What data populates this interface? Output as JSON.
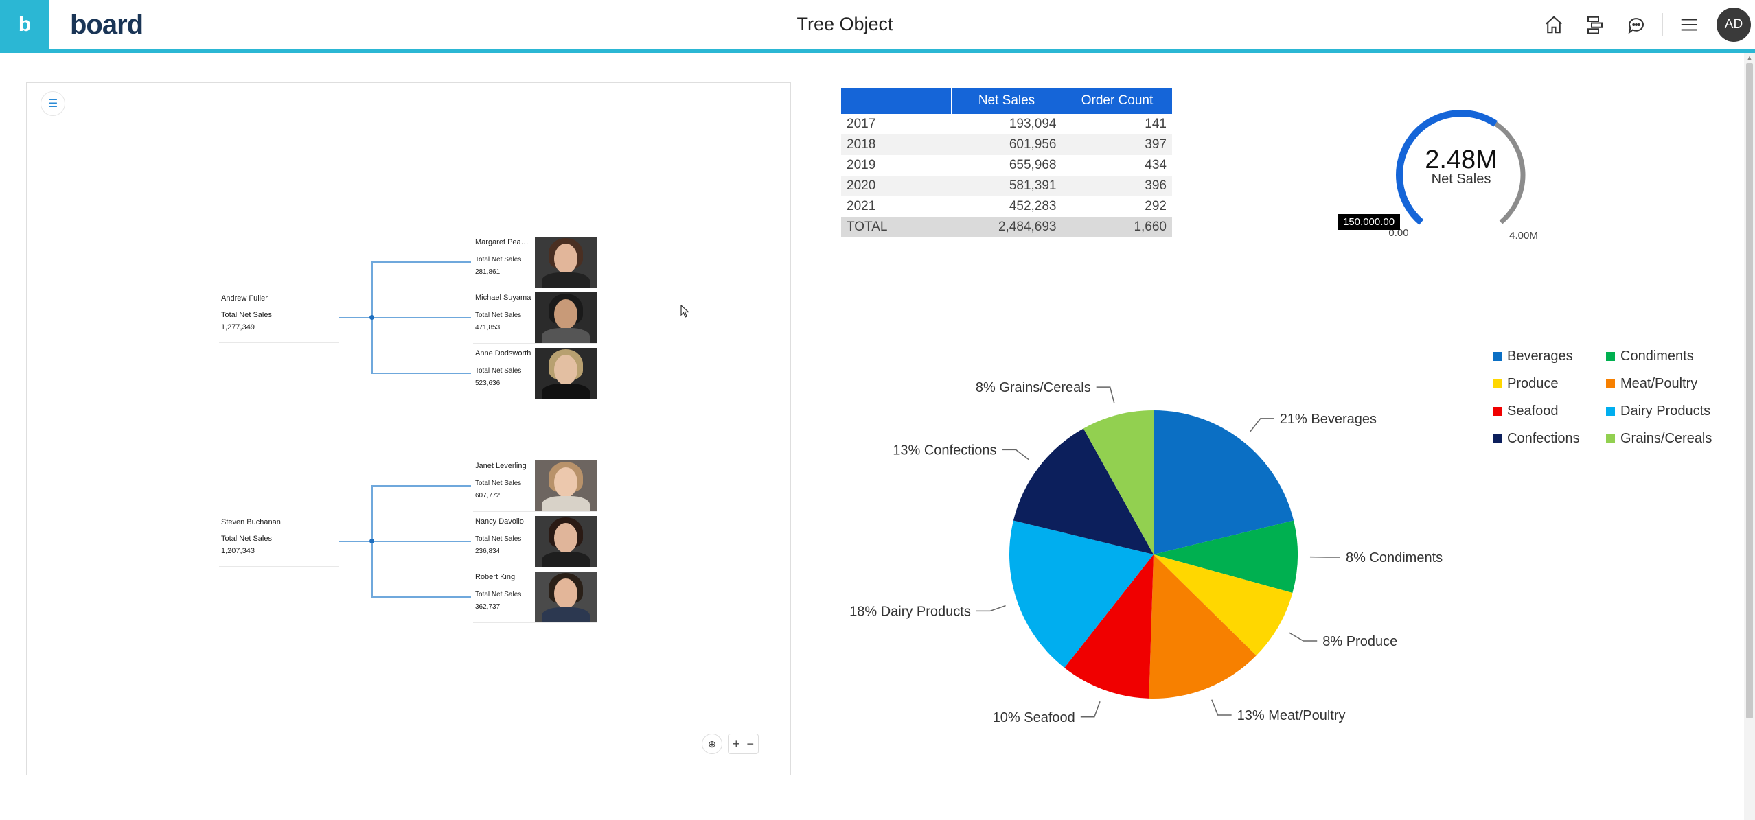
{
  "header": {
    "brand": "board",
    "logo_letter": "b",
    "title": "Tree Object",
    "avatar_initials": "AD"
  },
  "tree": {
    "groups": [
      {
        "root": {
          "name": "Andrew Fuller",
          "label": "Total Net Sales",
          "value": "1,277,349"
        },
        "children": [
          {
            "name": "Margaret Peacoc...",
            "label": "Total Net Sales",
            "value": "281,861"
          },
          {
            "name": "Michael Suyama",
            "label": "Total Net Sales",
            "value": "471,853"
          },
          {
            "name": "Anne Dodsworth",
            "label": "Total Net Sales",
            "value": "523,636"
          }
        ]
      },
      {
        "root": {
          "name": "Steven Buchanan",
          "label": "Total Net Sales",
          "value": "1,207,343"
        },
        "children": [
          {
            "name": "Janet Leverling",
            "label": "Total Net Sales",
            "value": "607,772"
          },
          {
            "name": "Nancy Davolio",
            "label": "Total Net Sales",
            "value": "236,834"
          },
          {
            "name": "Robert King",
            "label": "Total Net Sales",
            "value": "362,737"
          }
        ]
      }
    ]
  },
  "grid": {
    "headers": [
      "",
      "Net Sales",
      "Order Count"
    ],
    "rows": [
      [
        "2017",
        "193,094",
        "141"
      ],
      [
        "2018",
        "601,956",
        "397"
      ],
      [
        "2019",
        "655,968",
        "434"
      ],
      [
        "2020",
        "581,391",
        "396"
      ],
      [
        "2021",
        "452,283",
        "292"
      ]
    ],
    "total": [
      "TOTAL",
      "2,484,693",
      "1,660"
    ]
  },
  "gauge": {
    "value_text": "2.48M",
    "label": "Net Sales",
    "min_label": "0.00",
    "max_label": "4.00M",
    "tooltip": "150,000.00",
    "value": 2484693,
    "max": 4000000,
    "colors": {
      "filled": "#1565d8",
      "remaining": "#8c8c8c"
    }
  },
  "chart_data": {
    "type": "pie",
    "slices": [
      {
        "name": "Beverages",
        "percent": 21,
        "label": "21% Beverages",
        "color": "#0b6fc4"
      },
      {
        "name": "Condiments",
        "percent": 8,
        "label": "8% Condiments",
        "color": "#00b050"
      },
      {
        "name": "Produce",
        "percent": 8,
        "label": "8% Produce",
        "color": "#ffd700"
      },
      {
        "name": "Meat/Poultry",
        "percent": 13,
        "label": "13% Meat/Poultry",
        "color": "#f78000"
      },
      {
        "name": "Seafood",
        "percent": 10,
        "label": "10% Seafood",
        "color": "#f00000"
      },
      {
        "name": "Dairy Products",
        "percent": 18,
        "label": "18% Dairy Products",
        "color": "#00aeef"
      },
      {
        "name": "Confections",
        "percent": 13,
        "label": "13% Confections",
        "color": "#0c1f5c"
      },
      {
        "name": "Grains/Cereals",
        "percent": 8,
        "label": "8% Grains/Cereals",
        "color": "#92d050"
      }
    ],
    "legend": [
      "Beverages",
      "Condiments",
      "Produce",
      "Meat/Poultry",
      "Seafood",
      "Dairy Products",
      "Confections",
      "Grains/Cereals"
    ],
    "legend_position": "top-right"
  }
}
